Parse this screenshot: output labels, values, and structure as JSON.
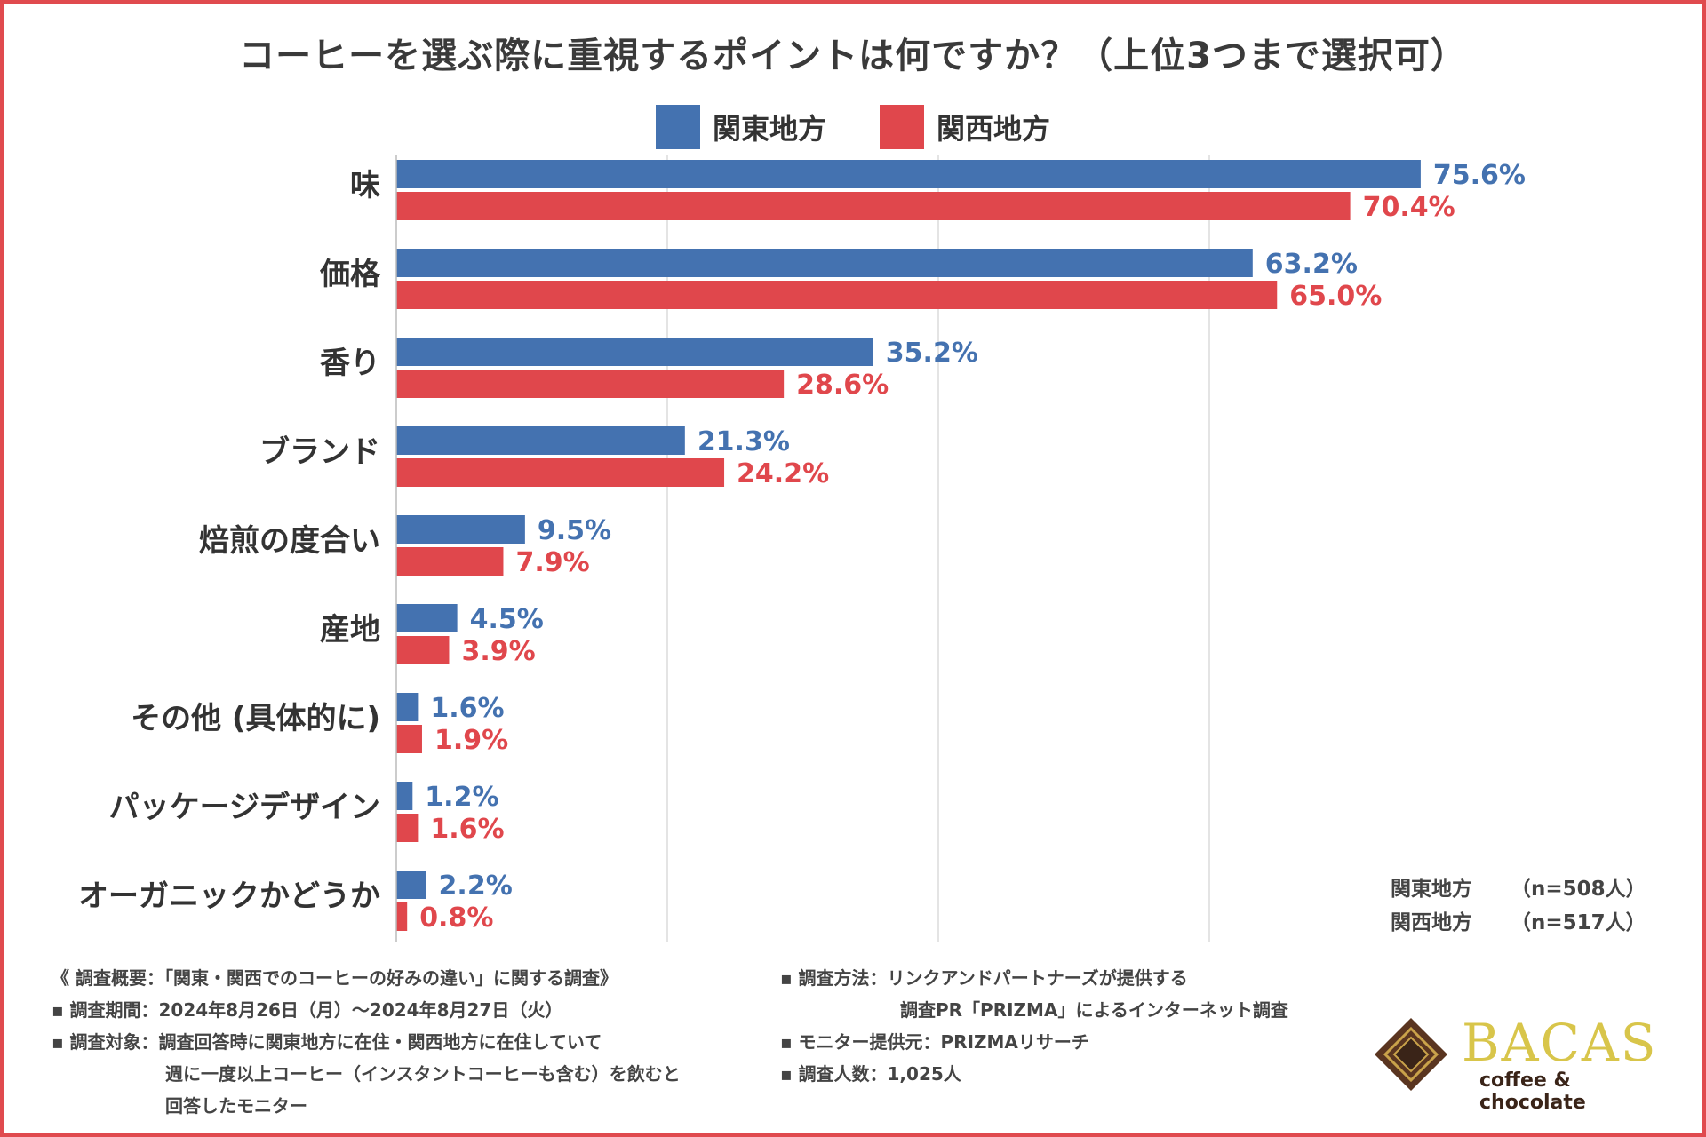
{
  "title": "コーヒーを選ぶ際に重視するポイントは何ですか？（上位3つまで選択可）",
  "legend": [
    {
      "label": "関東地方",
      "color": "#4472b0"
    },
    {
      "label": "関西地方",
      "color": "#e0474c"
    }
  ],
  "chart_data": {
    "type": "bar",
    "orientation": "horizontal",
    "title": "コーヒーを選ぶ際に重視するポイントは何ですか？（上位3つまで選択可）",
    "categories": [
      "味",
      "価格",
      "香り",
      "ブランド",
      "焙煎の度合い",
      "産地",
      "その他 (具体的に)",
      "パッケージデザイン",
      "オーガニックかどうか"
    ],
    "series": [
      {
        "name": "関東地方",
        "color": "#4472b0",
        "values": [
          75.6,
          63.2,
          35.2,
          21.3,
          9.5,
          4.5,
          1.6,
          1.2,
          2.2
        ],
        "labels": [
          "75.6%",
          "63.2%",
          "35.2%",
          "21.3%",
          "9.5%",
          "4.5%",
          "1.6%",
          "1.2%",
          "2.2%"
        ]
      },
      {
        "name": "関西地方",
        "color": "#e0474c",
        "values": [
          70.4,
          65.0,
          28.6,
          24.2,
          7.9,
          3.9,
          1.9,
          1.6,
          0.8
        ],
        "labels": [
          "70.4%",
          "65.0%",
          "28.6%",
          "24.2%",
          "7.9%",
          "3.9%",
          "1.9%",
          "1.6%",
          "0.8%"
        ]
      }
    ],
    "xlim": [
      0,
      80
    ],
    "grid": true,
    "unit": "%"
  },
  "sample": [
    {
      "region": "関東地方",
      "n": "（n=508人）"
    },
    {
      "region": "関西地方",
      "n": "（n=517人）"
    }
  ],
  "notes_left": {
    "summary": "《 調査概要：「関東・関西でのコーヒーの好みの違い」に関する調査》",
    "period": "▪ 調査期間：2024年8月26日（月）～2024年8月27日（火）",
    "target_1": "▪ 調査対象：調査回答時に関東地方に在住・関西地方に在住していて",
    "target_2": "週に一度以上コーヒー（インスタントコーヒーも含む）を飲むと",
    "target_3": "回答したモニター"
  },
  "notes_right": {
    "method_1": "▪ 調査方法：リンクアンドパートナーズが提供する",
    "method_2": "調査PR「PRIZMA」によるインターネット調査",
    "provider": "▪ モニター提供元：PRIZMAリサーチ",
    "count": "▪ 調査人数：1,025人"
  },
  "logo": {
    "name": "BACAS",
    "tagline": "coffee & chocolate"
  }
}
